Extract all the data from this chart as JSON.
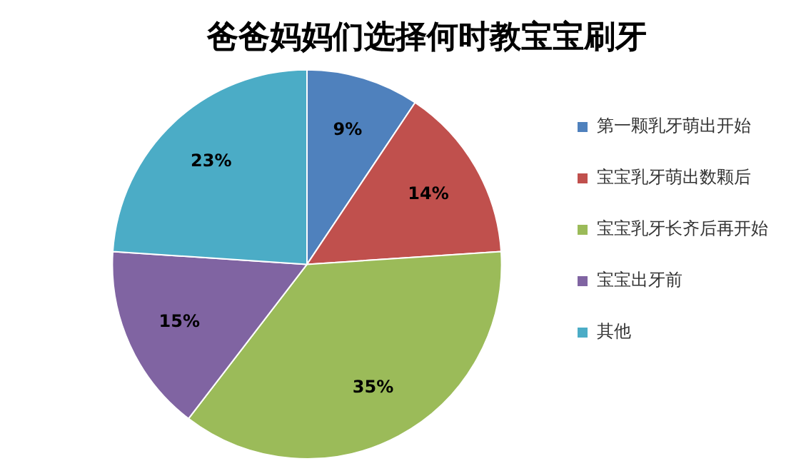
{
  "chart_data": {
    "type": "pie",
    "title": "爸爸妈妈们选择何时教宝宝刷牙",
    "categories": [
      "第一颗乳牙萌出开始",
      "宝宝乳牙萌出数颗后",
      "宝宝乳牙长齐后再开始",
      "宝宝出牙前",
      "其他"
    ],
    "values": [
      9,
      14,
      35,
      15,
      23
    ],
    "colors": [
      "#4f81bd",
      "#c0504d",
      "#9bbb59",
      "#8064a2",
      "#4bacc6"
    ],
    "value_labels": [
      "9%",
      "14%",
      "35%",
      "15%",
      "23%"
    ],
    "legend": "right"
  }
}
